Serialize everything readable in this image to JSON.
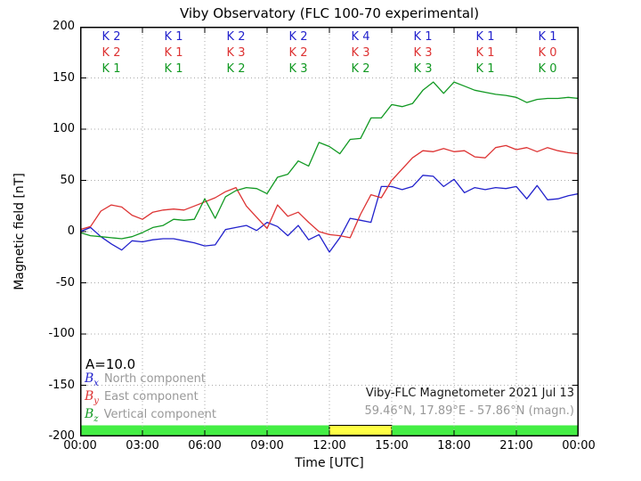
{
  "chart_data": {
    "type": "line",
    "title": "Viby Observatory (FLC 100-70 experimental)",
    "xlabel": "Time [UTC]",
    "ylabel": "Magnetic field [nT]",
    "xlim": [
      0,
      24
    ],
    "ylim": [
      -200,
      200
    ],
    "grid": "dotted",
    "x_tick_hours": [
      0,
      3,
      6,
      9,
      12,
      15,
      18,
      21,
      24
    ],
    "x_tick_labels": [
      "00:00",
      "03:00",
      "06:00",
      "09:00",
      "12:00",
      "15:00",
      "18:00",
      "21:00",
      "00:00"
    ],
    "y_ticks": [
      200,
      150,
      100,
      50,
      0,
      -50,
      -100,
      -150,
      -200
    ],
    "x_start_hour": 0,
    "x_step_hours": 0.5,
    "series": [
      {
        "name": "Bx North component",
        "color": "#2222cc",
        "values": [
          0,
          4,
          -5,
          -12,
          -18,
          -9,
          -10,
          -8,
          -7,
          -7,
          -9,
          -11,
          -14,
          -13,
          2,
          4,
          6,
          1,
          9,
          5,
          -4,
          6,
          -8,
          -3,
          -20,
          -6,
          13,
          11,
          9,
          44,
          44,
          41,
          44,
          55,
          54,
          44,
          51,
          38,
          43,
          41,
          43,
          42,
          44,
          32,
          45,
          31,
          32,
          35,
          37
        ]
      },
      {
        "name": "By East component",
        "color": "#dd3333",
        "values": [
          2,
          5,
          20,
          26,
          24,
          16,
          12,
          19,
          21,
          22,
          21,
          25,
          29,
          33,
          39,
          43,
          25,
          14,
          3,
          26,
          15,
          19,
          9,
          0,
          -3,
          -4,
          -6,
          17,
          36,
          33,
          50,
          61,
          72,
          79,
          78,
          81,
          78,
          79,
          73,
          72,
          82,
          84,
          80,
          82,
          78,
          82,
          79,
          77,
          76
        ]
      },
      {
        "name": "Bz Vertical component",
        "color": "#119922",
        "values": [
          -1,
          -4,
          -5,
          -6,
          -7,
          -5,
          -1,
          4,
          6,
          12,
          11,
          12,
          32,
          13,
          34,
          40,
          43,
          42,
          37,
          53,
          56,
          69,
          64,
          87,
          83,
          76,
          90,
          91,
          111,
          111,
          124,
          122,
          125,
          138,
          146,
          135,
          146,
          142,
          138,
          136,
          134,
          133,
          131,
          126,
          129,
          130,
          130,
          131,
          130
        ]
      }
    ],
    "k_index": {
      "interval_hours": 3,
      "rows": [
        {
          "component": "Bx",
          "color": "#2222cc",
          "labels": [
            "K 2",
            "K 1",
            "K 2",
            "K 2",
            "K 4",
            "K 1",
            "K 1",
            "K 1"
          ]
        },
        {
          "component": "By",
          "color": "#dd3333",
          "labels": [
            "K 2",
            "K 1",
            "K 3",
            "K 2",
            "K 3",
            "K 3",
            "K 1",
            "K 0"
          ]
        },
        {
          "component": "Bz",
          "color": "#119922",
          "labels": [
            "K 1",
            "K 1",
            "K 2",
            "K 3",
            "K 2",
            "K 3",
            "K 1",
            "K 0"
          ]
        }
      ]
    },
    "activity_bar": {
      "segments": [
        {
          "start_hour": 0,
          "end_hour": 12,
          "color": "#44ee44"
        },
        {
          "start_hour": 12,
          "end_hour": 15,
          "color": "#ffff44"
        },
        {
          "start_hour": 15,
          "end_hour": 24,
          "color": "#44ee44"
        }
      ]
    }
  },
  "annotations": {
    "a_index": "A=10.0",
    "credit_line1": "Viby-FLC Magnetometer 2021 Jul 13",
    "credit_line2": "59.46°N, 17.89°E - 57.86°N (magn.)"
  },
  "legend": {
    "items": [
      {
        "symbol_base": "B",
        "symbol_sub": "x",
        "color": "#2222cc",
        "label": "North component"
      },
      {
        "symbol_base": "B",
        "symbol_sub": "y",
        "color": "#dd3333",
        "label": "East component"
      },
      {
        "symbol_base": "B",
        "symbol_sub": "z",
        "color": "#119922",
        "label": "Vertical component"
      }
    ]
  },
  "colors": {
    "grid": "#aaaaaa",
    "frame": "#000000",
    "muted_text": "#999999"
  }
}
